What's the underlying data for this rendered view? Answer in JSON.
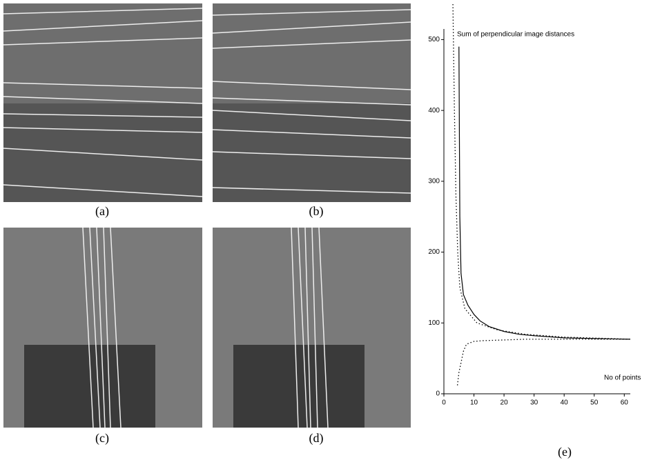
{
  "panel_labels": [
    "(a)",
    "(b)",
    "(c)",
    "(d)"
  ],
  "chart_data": {
    "type": "line",
    "label": "(e)",
    "annotations": [
      "Sum of perpendicular image distances",
      "No of points"
    ],
    "xlim": [
      0,
      62
    ],
    "ylim": [
      0,
      515
    ],
    "xticks": [
      0,
      10,
      20,
      30,
      40,
      50,
      60
    ],
    "yticks": [
      0,
      100,
      200,
      300,
      400,
      500
    ],
    "series": [
      {
        "color": "#000000",
        "dash": "solid",
        "x": [
          5,
          5.3,
          5.7,
          6.5,
          8,
          10,
          12,
          15,
          20,
          25,
          30,
          40,
          50,
          62
        ],
        "values": [
          490,
          250,
          170,
          140,
          125,
          112,
          103,
          95,
          88,
          84,
          82,
          79,
          78,
          77
        ]
      },
      {
        "color": "#000000",
        "dash": "dotted",
        "x": [
          3,
          3.5,
          4,
          4.6,
          5.3,
          7,
          11,
          18,
          27,
          40,
          55,
          62
        ],
        "values": [
          550,
          400,
          280,
          200,
          150,
          120,
          100,
          90,
          84,
          80,
          78,
          77
        ]
      },
      {
        "color": "#000000",
        "dash": "dotted",
        "x": [
          4.5,
          5,
          6.5,
          7.5,
          10,
          13,
          20,
          27,
          40,
          54,
          62
        ],
        "values": [
          12,
          30,
          60,
          70,
          74,
          75,
          76,
          77,
          77,
          77,
          77
        ]
      }
    ]
  }
}
